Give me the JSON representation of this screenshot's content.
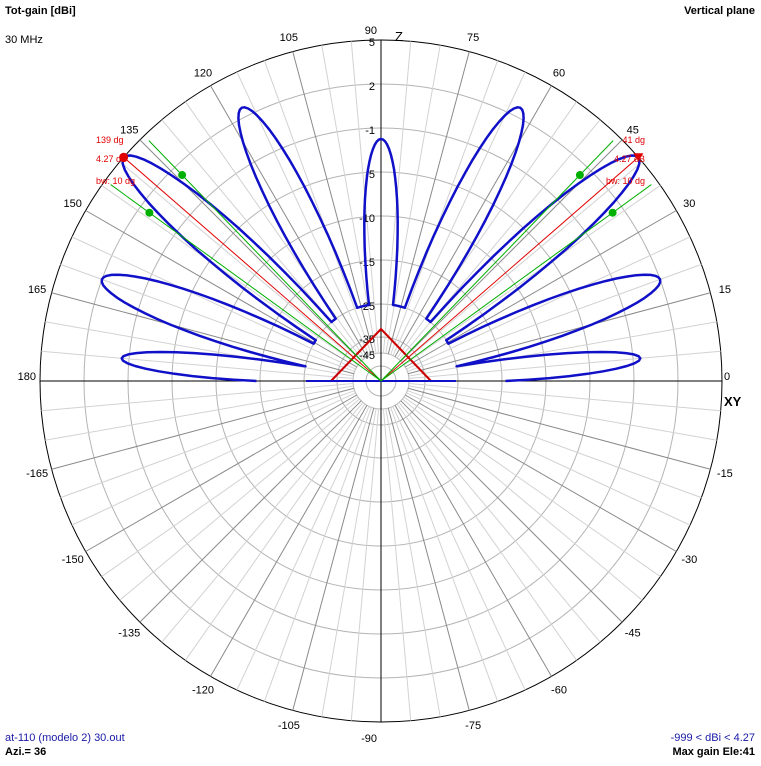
{
  "header": {
    "title": "Tot-gain [dBi]",
    "frequency": "30 MHz",
    "plane": "Vertical plane"
  },
  "footer": {
    "file": "at-110 (modelo 2) 30.out",
    "azimuth": "Azi.= 36",
    "range": "-999 < dBi < 4.27",
    "max_gain": "Max gain Ele:41"
  },
  "axis_labels": {
    "vertical": "Z",
    "horizontal": "XY"
  },
  "markers": {
    "left": {
      "angle_label": "139 dg",
      "gain_label": "4.27 dB",
      "bw_label": "bw: 10 dg"
    },
    "right": {
      "angle_label": "41 dg",
      "gain_label": "4.27 dB",
      "bw_label": "bw: 10 dg"
    }
  },
  "colors": {
    "pattern": "#1010c8",
    "grid": "#b4b4b4",
    "axes": "#000000",
    "marker": "#e00000",
    "beam_edge": "#00b000",
    "antenna": "#cc0000",
    "footer_text": "#1a1aa6"
  },
  "chart_data": {
    "type": "polar",
    "title": "Tot-gain [dBi]",
    "angle_unit": "degrees",
    "angle_tick_labels": [
      "0",
      "15",
      "30",
      "45",
      "60",
      "75",
      "90",
      "105",
      "120",
      "135",
      "150",
      "165",
      "180",
      "-165",
      "-150",
      "-135",
      "-120",
      "-105",
      "-90",
      "-75",
      "-60",
      "-45",
      "-30",
      "-15"
    ],
    "radial_tick_labels": [
      "5",
      "2",
      "-1",
      "-5",
      "-10",
      "-15",
      "-25",
      "-35",
      "-45"
    ],
    "radial_range_dbi": [
      -999,
      4.27
    ],
    "series": [
      {
        "lobes": [
          {
            "center": 5,
            "half_width": 6,
            "gain_dbi": -0.5
          },
          {
            "center": 20,
            "half_width": 9,
            "gain_dbi": 2.0
          },
          {
            "center": 41,
            "half_width": 9,
            "gain_dbi": 4.27
          },
          {
            "center": 63,
            "half_width": 9,
            "gain_dbi": 2.5
          },
          {
            "center": 90,
            "half_width": 9,
            "gain_dbi": -2.0
          },
          {
            "center": 117,
            "half_width": 9,
            "gain_dbi": 2.5
          },
          {
            "center": 139,
            "half_width": 9,
            "gain_dbi": 4.27
          },
          {
            "center": 160,
            "half_width": 9,
            "gain_dbi": 2.0
          },
          {
            "center": 175,
            "half_width": 6,
            "gain_dbi": -0.5
          }
        ]
      }
    ],
    "beam_markers": [
      {
        "angle": 139,
        "gain_dbi": 4.27,
        "beamwidth": 10
      },
      {
        "angle": 41,
        "gain_dbi": 4.27,
        "beamwidth": 10
      }
    ]
  }
}
